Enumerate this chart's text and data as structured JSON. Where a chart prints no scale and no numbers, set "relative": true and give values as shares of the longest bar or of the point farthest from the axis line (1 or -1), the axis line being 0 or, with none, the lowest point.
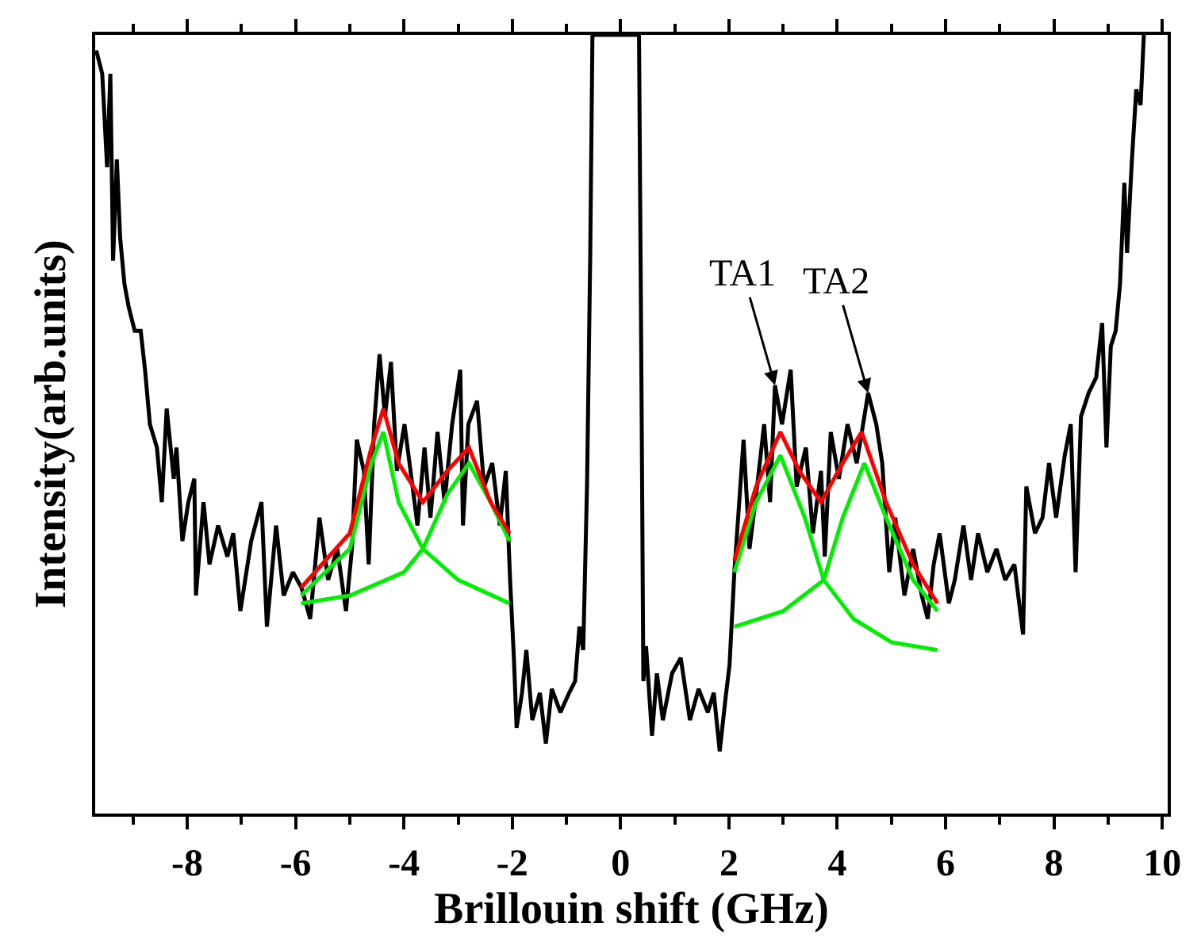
{
  "chart_data": {
    "type": "line",
    "relative": true,
    "xlabel": "Brillouin shift (GHz)",
    "ylabel": "Intensity(arb.units)",
    "xlim": [
      -9.7,
      10.1
    ],
    "xticks": [
      {
        "value": -9,
        "label": null
      },
      -8,
      {
        "value": -7,
        "label": null
      },
      -6,
      {
        "value": -5,
        "label": null
      },
      -4,
      {
        "value": -3,
        "label": null
      },
      -2,
      {
        "value": -1,
        "label": null
      },
      0,
      {
        "value": 1,
        "label": null
      },
      2,
      {
        "value": 3,
        "label": null
      },
      4,
      {
        "value": 5,
        "label": null
      },
      6,
      {
        "value": 7,
        "label": null
      },
      8,
      {
        "value": 9,
        "label": null
      },
      10
    ],
    "marker": "none",
    "line_style": "solid",
    "series": [
      {
        "color": "#000000",
        "x": [
          -9.68,
          -9.57,
          -9.48,
          -9.42,
          -9.37,
          -9.3,
          -9.24,
          -9.16,
          -9.08,
          -8.97,
          -8.86,
          -8.78,
          -8.69,
          -8.56,
          -8.47,
          -8.38,
          -8.25,
          -8.2,
          -8.09,
          -7.98,
          -7.87,
          -7.84,
          -7.7,
          -7.59,
          -7.43,
          -7.26,
          -7.15,
          -7.02,
          -6.82,
          -6.63,
          -6.53,
          -6.36,
          -6.22,
          -6.05,
          -5.89,
          -5.73,
          -5.56,
          -5.4,
          -5.23,
          -5.07,
          -4.96,
          -4.87,
          -4.74,
          -4.65,
          -4.55,
          -4.45,
          -4.35,
          -4.24,
          -4.13,
          -3.99,
          -3.86,
          -3.75,
          -3.62,
          -3.51,
          -3.38,
          -3.25,
          -3.11,
          -2.96,
          -2.91,
          -2.81,
          -2.65,
          -2.52,
          -2.37,
          -2.23,
          -2.12,
          -2.04,
          -1.97,
          -1.92,
          -1.82,
          -1.74,
          -1.63,
          -1.49,
          -1.38,
          -1.27,
          -1.11,
          -0.95,
          -0.84,
          -0.76,
          -0.69,
          -0.62,
          -0.56,
          -0.52,
          0.34,
          0.39,
          0.42,
          0.47,
          0.58,
          0.67,
          0.78,
          0.95,
          1.11,
          1.28,
          1.44,
          1.61,
          1.72,
          1.83,
          1.94,
          2.01,
          2.1,
          2.27,
          2.38,
          2.52,
          2.65,
          2.76,
          2.85,
          2.98,
          3.14,
          3.25,
          3.42,
          3.55,
          3.7,
          3.77,
          3.88,
          4.03,
          4.19,
          4.36,
          4.57,
          4.72,
          4.83,
          4.96,
          5.07,
          5.24,
          5.4,
          5.56,
          5.67,
          5.78,
          5.89,
          6.06,
          6.17,
          6.33,
          6.47,
          6.6,
          6.77,
          6.94,
          7.1,
          7.27,
          7.43,
          7.49,
          7.65,
          7.79,
          7.91,
          8.04,
          8.2,
          8.31,
          8.4,
          8.5,
          8.64,
          8.78,
          8.89,
          8.97,
          9.05,
          9.14,
          9.22,
          9.3,
          9.35,
          9.44,
          9.52,
          9.6,
          9.66
        ],
        "values": [
          0.98,
          0.95,
          0.83,
          0.95,
          0.71,
          0.84,
          0.74,
          0.68,
          0.65,
          0.62,
          0.62,
          0.57,
          0.5,
          0.47,
          0.4,
          0.52,
          0.43,
          0.47,
          0.35,
          0.4,
          0.43,
          0.28,
          0.4,
          0.32,
          0.37,
          0.33,
          0.36,
          0.26,
          0.35,
          0.4,
          0.24,
          0.37,
          0.28,
          0.31,
          0.29,
          0.25,
          0.38,
          0.3,
          0.34,
          0.26,
          0.34,
          0.48,
          0.44,
          0.32,
          0.5,
          0.59,
          0.51,
          0.58,
          0.44,
          0.5,
          0.43,
          0.37,
          0.47,
          0.38,
          0.49,
          0.4,
          0.5,
          0.57,
          0.37,
          0.5,
          0.53,
          0.42,
          0.45,
          0.37,
          0.44,
          0.3,
          0.2,
          0.11,
          0.155,
          0.21,
          0.12,
          0.155,
          0.09,
          0.16,
          0.13,
          0.155,
          0.17,
          0.24,
          0.21,
          0.42,
          0.72,
          1.0,
          1.0,
          0.5,
          0.17,
          0.215,
          0.1,
          0.18,
          0.12,
          0.18,
          0.2,
          0.12,
          0.16,
          0.13,
          0.155,
          0.08,
          0.15,
          0.19,
          0.31,
          0.48,
          0.34,
          0.42,
          0.5,
          0.4,
          0.55,
          0.5,
          0.57,
          0.42,
          0.47,
          0.36,
          0.44,
          0.33,
          0.49,
          0.43,
          0.5,
          0.45,
          0.54,
          0.5,
          0.45,
          0.31,
          0.38,
          0.28,
          0.34,
          0.28,
          0.25,
          0.32,
          0.36,
          0.27,
          0.3,
          0.37,
          0.3,
          0.36,
          0.31,
          0.34,
          0.3,
          0.32,
          0.23,
          0.42,
          0.36,
          0.38,
          0.45,
          0.38,
          0.46,
          0.5,
          0.31,
          0.51,
          0.54,
          0.56,
          0.63,
          0.47,
          0.6,
          0.62,
          0.68,
          0.81,
          0.72,
          0.84,
          0.93,
          0.91,
          1.0
        ]
      },
      {
        "color": "#00ee00",
        "x": [
          -5.9,
          -5.0,
          -4.6,
          -4.38,
          -4.1,
          -3.65,
          -3.0,
          -2.05
        ],
        "values": [
          0.28,
          0.34,
          0.45,
          0.49,
          0.4,
          0.34,
          0.3,
          0.27
        ]
      },
      {
        "color": "#00ee00",
        "x": [
          -5.9,
          -5.0,
          -4.0,
          -3.65,
          -3.2,
          -2.8,
          -2.4,
          -2.05
        ],
        "values": [
          0.27,
          0.28,
          0.31,
          0.34,
          0.41,
          0.45,
          0.4,
          0.35
        ]
      },
      {
        "color": "#00ee00",
        "x": [
          2.1,
          2.5,
          2.95,
          3.4,
          3.75,
          4.3,
          5.0,
          5.85
        ],
        "values": [
          0.31,
          0.4,
          0.46,
          0.38,
          0.3,
          0.25,
          0.22,
          0.21
        ]
      },
      {
        "color": "#00ee00",
        "x": [
          2.1,
          3.0,
          3.75,
          4.1,
          4.5,
          4.9,
          5.4,
          5.85
        ],
        "values": [
          0.24,
          0.26,
          0.3,
          0.38,
          0.45,
          0.38,
          0.3,
          0.26
        ]
      },
      {
        "color": "#ff0000",
        "x": [
          -5.9,
          -5.0,
          -4.6,
          -4.38,
          -4.1,
          -3.65,
          -3.2,
          -2.8,
          -2.4,
          -2.05
        ],
        "values": [
          0.29,
          0.36,
          0.47,
          0.52,
          0.45,
          0.4,
          0.44,
          0.47,
          0.4,
          0.36
        ]
      },
      {
        "color": "#ff0000",
        "x": [
          2.1,
          2.5,
          2.95,
          3.3,
          3.7,
          4.1,
          4.45,
          4.9,
          5.4,
          5.85
        ],
        "values": [
          0.325,
          0.42,
          0.49,
          0.44,
          0.4,
          0.45,
          0.49,
          0.4,
          0.32,
          0.27
        ]
      }
    ],
    "annotations": [
      {
        "text": "TA1",
        "x": 2.85,
        "y": 0.55
      },
      {
        "text": "TA2",
        "x": 4.57,
        "y": 0.54
      }
    ]
  }
}
